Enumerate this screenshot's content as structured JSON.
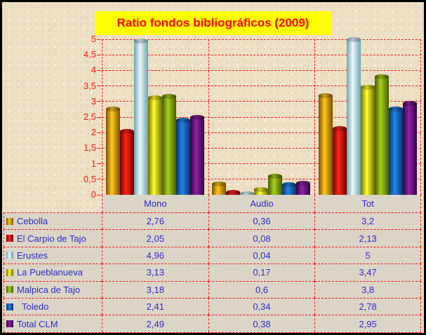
{
  "chart_data": {
    "type": "bar",
    "title": "Ratio fondos bibliográficos (2009)",
    "title_bg": "#ffff00",
    "title_color": "#ff0000",
    "categories": [
      "Mono",
      "Audio",
      "Tot"
    ],
    "series": [
      {
        "name": "Cebolla",
        "values": [
          2.76,
          0.36,
          3.2
        ],
        "labels": [
          "2,76",
          "0,36",
          "3,2"
        ],
        "color": "#f0a800",
        "color_dark": "#7a5000",
        "color_light": "#ffc81e"
      },
      {
        "name": "El Carpio de Tajo",
        "values": [
          2.05,
          0.08,
          2.13
        ],
        "labels": [
          "2,05",
          "0,08",
          "2,13"
        ],
        "color": "#e00000",
        "color_dark": "#700000",
        "color_light": "#ff2418"
      },
      {
        "name": "Erustes",
        "values": [
          4.96,
          0.04,
          5
        ],
        "labels": [
          "4,96",
          "0,04",
          "5"
        ],
        "color": "#bcdde6",
        "color_dark": "#6fa2b0",
        "color_light": "#e9f8fb"
      },
      {
        "name": "La Pueblanueva",
        "values": [
          3.13,
          0.17,
          3.47
        ],
        "labels": [
          "3,13",
          "0,17",
          "3,47"
        ],
        "color": "#f0e600",
        "color_dark": "#6f6f00",
        "color_light": "#ffff2a"
      },
      {
        "name": "Malpica de Tajo",
        "values": [
          3.18,
          0.6,
          3.8
        ],
        "labels": [
          "3,18",
          "0,6",
          "3,8"
        ],
        "color": "#93b515",
        "color_dark": "#445e00",
        "color_light": "#a9cf1d"
      },
      {
        "name": "  Toledo",
        "values": [
          2.41,
          0.34,
          2.78
        ],
        "labels": [
          "2,41",
          "0,34",
          "2,78"
        ],
        "color": "#1a6fd0",
        "color_dark": "#09356e",
        "color_light": "#2384e8"
      },
      {
        "name": "Total CLM",
        "values": [
          2.49,
          0.38,
          2.95
        ],
        "labels": [
          "2,49",
          "0,38",
          "2,95"
        ],
        "color": "#7a1c96",
        "color_dark": "#320044",
        "color_light": "#8e24a4"
      }
    ],
    "ylim": [
      0,
      5
    ],
    "y_step": 0.5,
    "y_ticks": [
      "5",
      "4,5",
      "4",
      "3,5",
      "3",
      "2,5",
      "2",
      "1,5",
      "1",
      "0,5",
      "0"
    ],
    "grid": true,
    "gridline_color": "#f51616",
    "axis_label_color": "#f32012",
    "value_text_color": "#2e2ec8",
    "legend_position": "table-left",
    "decimal_separator": ","
  }
}
